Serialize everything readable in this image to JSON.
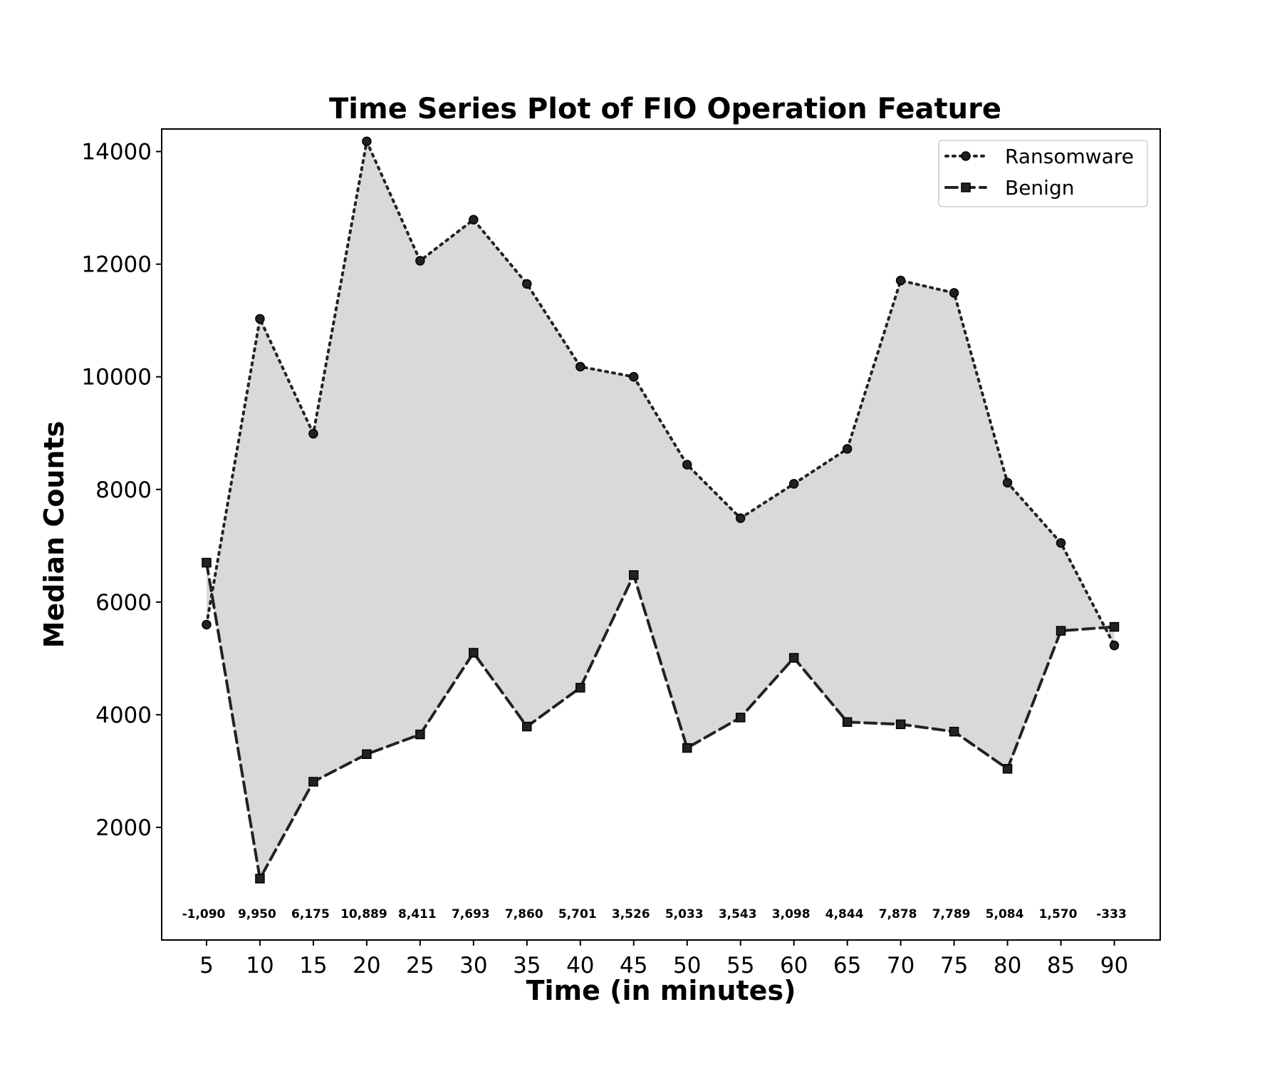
{
  "chart_data": {
    "type": "line",
    "title": "Time Series Plot of FIO Operation Feature",
    "xlabel": "Time (in minutes)",
    "ylabel": "Median Counts",
    "x": [
      5,
      10,
      15,
      20,
      25,
      30,
      35,
      40,
      45,
      50,
      55,
      60,
      65,
      70,
      75,
      80,
      85,
      90
    ],
    "x_tick_labels": [
      "5",
      "10",
      "15",
      "20",
      "25",
      "30",
      "35",
      "40",
      "45",
      "50",
      "55",
      "60",
      "65",
      "70",
      "75",
      "80",
      "85",
      "90"
    ],
    "y_ticks": [
      2000,
      4000,
      6000,
      8000,
      10000,
      12000,
      14000
    ],
    "y_tick_labels": [
      "2000",
      "4000",
      "6000",
      "8000",
      "10000",
      "12000",
      "14000"
    ],
    "xlim": [
      0.8,
      94.3
    ],
    "ylim": [
      0,
      14400
    ],
    "grid": false,
    "legend_position": "top-right",
    "fill_between": true,
    "fill_color": "#d9d9d9",
    "series": [
      {
        "name": "Ransomware",
        "marker": "circle",
        "line_style": "dotted",
        "color": "#222222",
        "values": [
          5600,
          11030,
          8990,
          14180,
          12060,
          12790,
          11650,
          10180,
          10000,
          8440,
          7490,
          8100,
          8720,
          11710,
          11490,
          8120,
          7050,
          5230
        ]
      },
      {
        "name": "Benign",
        "marker": "square",
        "line_style": "dashed",
        "color": "#222222",
        "values": [
          6700,
          1090,
          2810,
          3300,
          3650,
          5100,
          3790,
          4480,
          6480,
          3410,
          3950,
          5010,
          3870,
          3830,
          3700,
          3040,
          5490,
          5560
        ]
      }
    ],
    "annotations": [
      "-1,090",
      "9,950",
      "6,175",
      "10,889",
      "8,411",
      "7,693",
      "7,860",
      "5,701",
      "3,526",
      "5,033",
      "3,543",
      "3,098",
      "4,844",
      "7,878",
      "7,789",
      "5,084",
      "1,570",
      "-333"
    ]
  }
}
